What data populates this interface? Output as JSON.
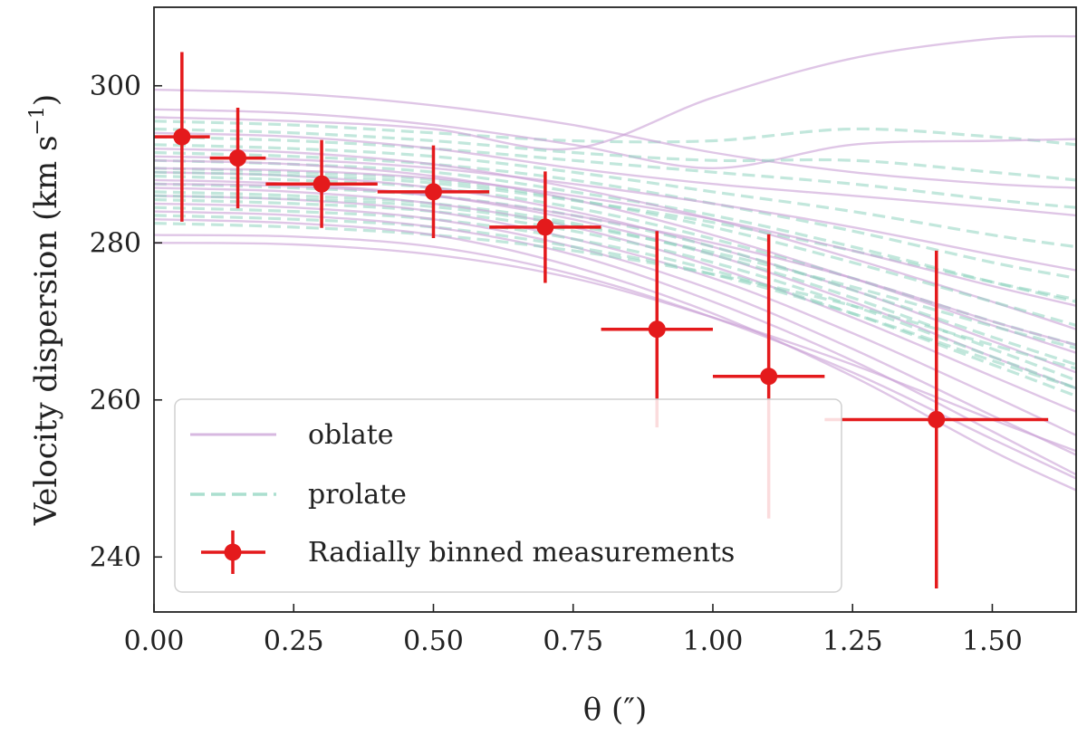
{
  "chart_data": {
    "type": "line",
    "title": "",
    "xlabel": "θ (″)",
    "ylabel": "Velocity dispersion (km s⁻¹)",
    "ylabel_main": "Velocity dispersion (km s",
    "ylabel_sup": "−1",
    "ylabel_close": ")",
    "xlim": [
      0.0,
      1.65
    ],
    "ylim": [
      233,
      310
    ],
    "xticks": [
      0.0,
      0.25,
      0.5,
      0.75,
      1.0,
      1.25,
      1.5
    ],
    "xtick_labels": [
      "0.00",
      "0.25",
      "0.50",
      "0.75",
      "1.00",
      "1.25",
      "1.50"
    ],
    "yticks": [
      240,
      260,
      280,
      300
    ],
    "ytick_labels": [
      "240",
      "260",
      "280",
      "300"
    ],
    "legend_position": "lower-left",
    "legend": [
      {
        "label": "oblate",
        "style": "solid",
        "color": "#c9a0d6"
      },
      {
        "label": "prolate",
        "style": "dashed",
        "color": "#8fd4bf"
      },
      {
        "label": "Radially binned measurements",
        "style": "errorbar",
        "color": "#e41a1c"
      }
    ],
    "series": [
      {
        "name": "Radially binned measurements",
        "color": "#e41a1c",
        "x": [
          0.05,
          0.15,
          0.3,
          0.5,
          0.7,
          0.9,
          1.1,
          1.4
        ],
        "y": [
          293.5,
          290.8,
          287.5,
          286.5,
          282.0,
          269.0,
          263.0,
          257.5
        ],
        "xerr": [
          0.05,
          0.05,
          0.1,
          0.1,
          0.1,
          0.1,
          0.1,
          0.2
        ],
        "yerr": [
          10.8,
          6.4,
          5.6,
          5.9,
          7.1,
          12.5,
          18.1,
          21.5
        ]
      },
      {
        "name": "oblate",
        "color": "#c9a0d6",
        "x": [
          0.0,
          0.25,
          0.5,
          0.75,
          1.0,
          1.25,
          1.5,
          1.65
        ],
        "y_families": [
          [
            299.5,
            299.0,
            297.5,
            295.0,
            291.5,
            289.0,
            287.5,
            287.0
          ],
          [
            297.0,
            296.5,
            295.0,
            292.5,
            289.5,
            292.5,
            293.0,
            293.2
          ],
          [
            296.0,
            295.5,
            294.5,
            292.0,
            298.5,
            303.5,
            306.0,
            306.3
          ],
          [
            294.0,
            293.5,
            292.0,
            289.5,
            287.5,
            286.0,
            284.5,
            283.5
          ],
          [
            292.0,
            291.5,
            290.0,
            287.0,
            283.0,
            278.0,
            272.5,
            269.0
          ],
          [
            290.5,
            290.0,
            288.5,
            285.5,
            281.0,
            275.5,
            269.5,
            266.0
          ],
          [
            289.0,
            288.5,
            287.0,
            284.0,
            279.5,
            274.0,
            267.5,
            263.5
          ],
          [
            288.0,
            287.5,
            286.0,
            283.0,
            278.5,
            272.5,
            265.5,
            261.5
          ],
          [
            287.0,
            286.5,
            285.0,
            282.0,
            277.0,
            270.5,
            263.0,
            258.5
          ],
          [
            286.0,
            285.5,
            284.0,
            280.5,
            275.5,
            268.5,
            260.5,
            255.5
          ],
          [
            285.0,
            284.5,
            283.0,
            279.5,
            274.0,
            266.5,
            258.0,
            253.0
          ],
          [
            284.0,
            283.5,
            282.0,
            278.5,
            272.5,
            265.0,
            256.0,
            250.5
          ],
          [
            283.0,
            282.5,
            281.0,
            277.0,
            271.0,
            263.0,
            253.5,
            248.5
          ],
          [
            281.0,
            280.8,
            279.5,
            276.0,
            270.5,
            263.5,
            255.0,
            250.0
          ],
          [
            280.0,
            279.8,
            278.5,
            275.5,
            270.5,
            264.5,
            257.5,
            253.5
          ],
          [
            291.0,
            290.6,
            289.5,
            287.5,
            285.0,
            282.0,
            278.5,
            276.5
          ],
          [
            289.5,
            289.2,
            288.2,
            286.0,
            283.0,
            279.0,
            274.5,
            272.0
          ],
          [
            287.5,
            287.2,
            286.0,
            283.5,
            280.0,
            275.5,
            270.0,
            267.0
          ]
        ]
      },
      {
        "name": "prolate",
        "color": "#8fd4bf",
        "x": [
          0.0,
          0.25,
          0.5,
          0.75,
          1.0,
          1.25,
          1.5,
          1.65
        ],
        "y_families": [
          [
            295.5,
            295.0,
            294.0,
            293.0,
            293.0,
            294.5,
            293.5,
            292.5
          ],
          [
            293.5,
            293.0,
            292.0,
            290.5,
            289.0,
            287.5,
            285.5,
            284.5
          ],
          [
            292.5,
            292.0,
            291.0,
            289.0,
            286.5,
            284.0,
            281.0,
            279.5
          ],
          [
            291.5,
            291.0,
            290.0,
            288.0,
            285.0,
            281.5,
            277.5,
            275.5
          ],
          [
            290.5,
            290.0,
            289.0,
            286.5,
            283.5,
            279.5,
            275.0,
            272.5
          ],
          [
            289.5,
            289.0,
            288.0,
            285.5,
            282.0,
            277.5,
            272.5,
            269.5
          ],
          [
            288.5,
            288.0,
            287.0,
            284.5,
            280.5,
            275.5,
            270.0,
            267.0
          ],
          [
            287.5,
            287.0,
            286.0,
            283.5,
            279.5,
            274.0,
            268.0,
            264.5
          ],
          [
            286.5,
            286.0,
            285.0,
            282.5,
            278.5,
            273.0,
            266.5,
            262.5
          ],
          [
            285.5,
            285.0,
            284.0,
            281.5,
            277.5,
            272.0,
            265.5,
            261.5
          ],
          [
            284.5,
            284.0,
            283.0,
            280.5,
            276.5,
            271.0,
            264.5,
            260.5
          ],
          [
            283.5,
            283.0,
            282.0,
            279.5,
            276.0,
            271.0,
            265.0,
            261.5
          ],
          [
            282.5,
            282.0,
            281.0,
            279.0,
            276.0,
            272.0,
            267.0,
            264.0
          ],
          [
            294.5,
            294.0,
            293.0,
            291.5,
            290.5,
            290.5,
            289.0,
            288.0
          ],
          [
            289.0,
            288.6,
            287.6,
            285.4,
            282.6,
            279.0,
            275.0,
            272.8
          ],
          [
            286.0,
            285.6,
            284.6,
            282.2,
            278.8,
            274.4,
            269.4,
            266.6
          ]
        ]
      }
    ]
  }
}
